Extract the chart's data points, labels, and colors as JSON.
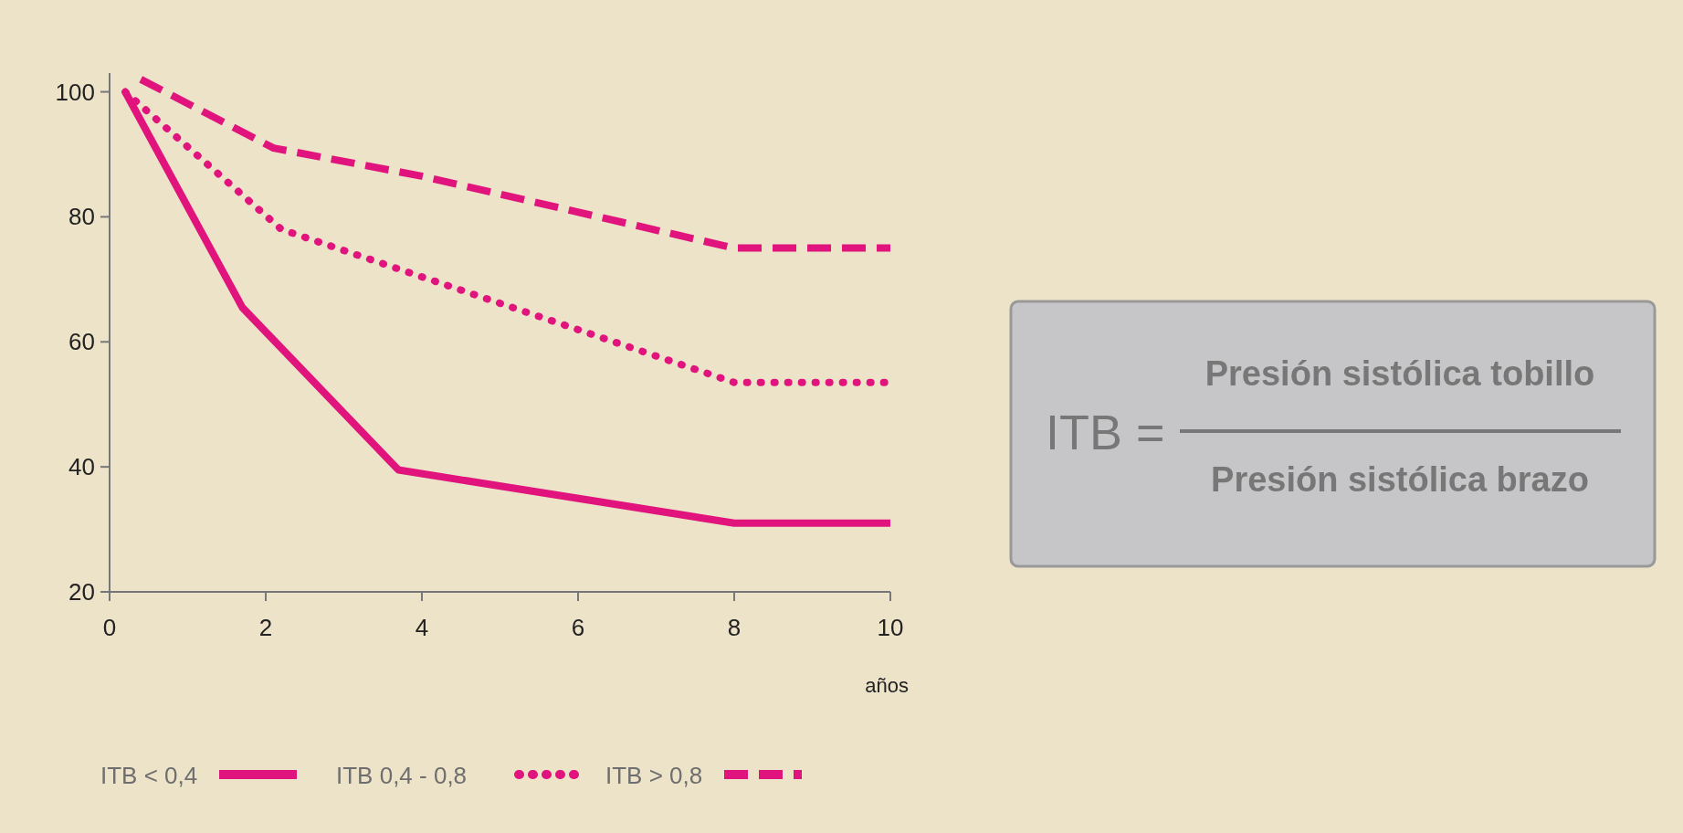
{
  "chart_data": {
    "type": "line",
    "xlabel": "años",
    "xlim": [
      0,
      10
    ],
    "ylim": [
      20,
      103
    ],
    "xticks": [
      0,
      2,
      4,
      6,
      8,
      10
    ],
    "yticks": [
      20,
      40,
      60,
      80,
      100
    ],
    "grid": false,
    "legend": "bottom left",
    "series": [
      {
        "name": "ITB < 0,4",
        "color": "#e0147c",
        "line_style": "solid",
        "x": [
          0.2,
          1.7,
          3.7,
          8,
          10
        ],
        "values": [
          100,
          65.5,
          39.5,
          31,
          31
        ]
      },
      {
        "name": "ITB 0,4 - 0,8",
        "color": "#e0147c",
        "line_style": "dotted",
        "x": [
          0.2,
          2.2,
          8,
          10
        ],
        "values": [
          100,
          78,
          53.5,
          53.5
        ]
      },
      {
        "name": "ITB > 0,8",
        "color": "#e0147c",
        "line_style": "dashed",
        "x": [
          0.4,
          2.1,
          4,
          8,
          10
        ],
        "values": [
          102,
          91,
          86.5,
          75,
          75
        ]
      }
    ],
    "annotations": [
      "ITB =",
      "Presión sistólica tobillo",
      "Presión sistólica brazo"
    ]
  }
}
